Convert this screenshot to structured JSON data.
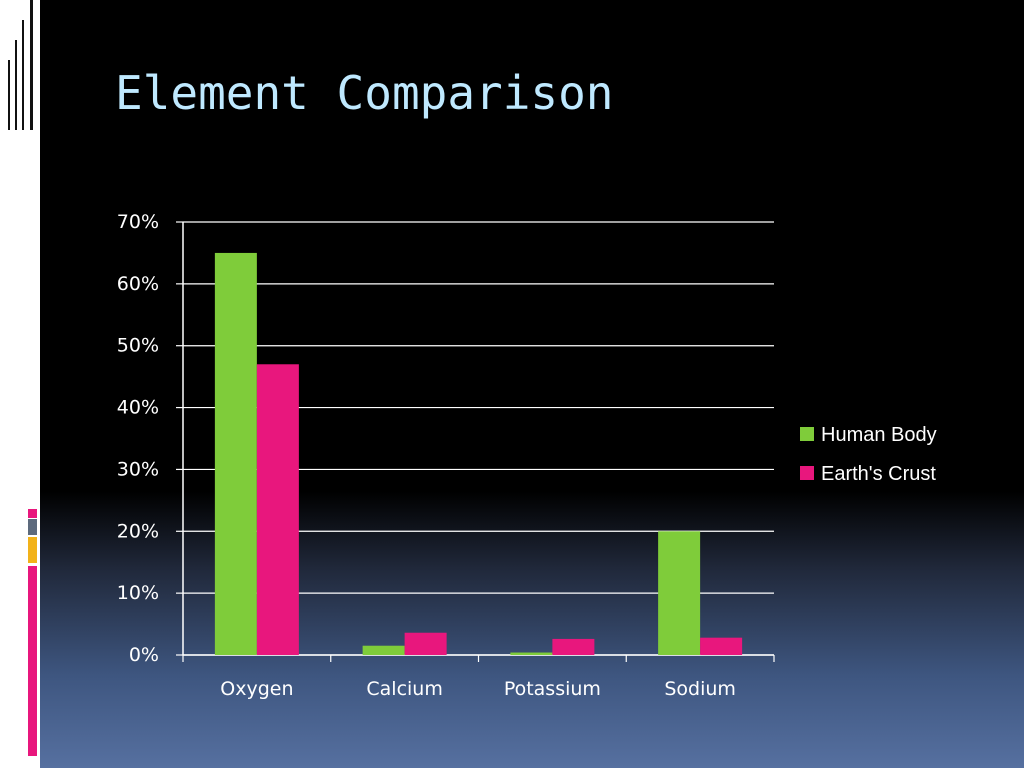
{
  "slide": {
    "title": "Element Comparison"
  },
  "theme": {
    "title_color": "#bfe9ff",
    "accent_pink": "#e8177d",
    "accent_slate": "#5d6a7d",
    "accent_gold": "#f2b21a"
  },
  "chart_data": {
    "type": "bar",
    "categories": [
      "Oxygen",
      "Calcium",
      "Potassium",
      "Sodium"
    ],
    "series": [
      {
        "name": "Human Body",
        "color": "#7fcc3a",
        "values": [
          65,
          1.5,
          0.4,
          20
        ]
      },
      {
        "name": "Earth's Crust",
        "color": "#e8177d",
        "values": [
          47,
          3.6,
          2.6,
          2.8
        ]
      }
    ],
    "y_ticks": [
      "0%",
      "10%",
      "20%",
      "30%",
      "40%",
      "50%",
      "60%",
      "70%"
    ],
    "ylim": [
      0,
      70
    ],
    "grid": true,
    "legend_position": "right"
  }
}
